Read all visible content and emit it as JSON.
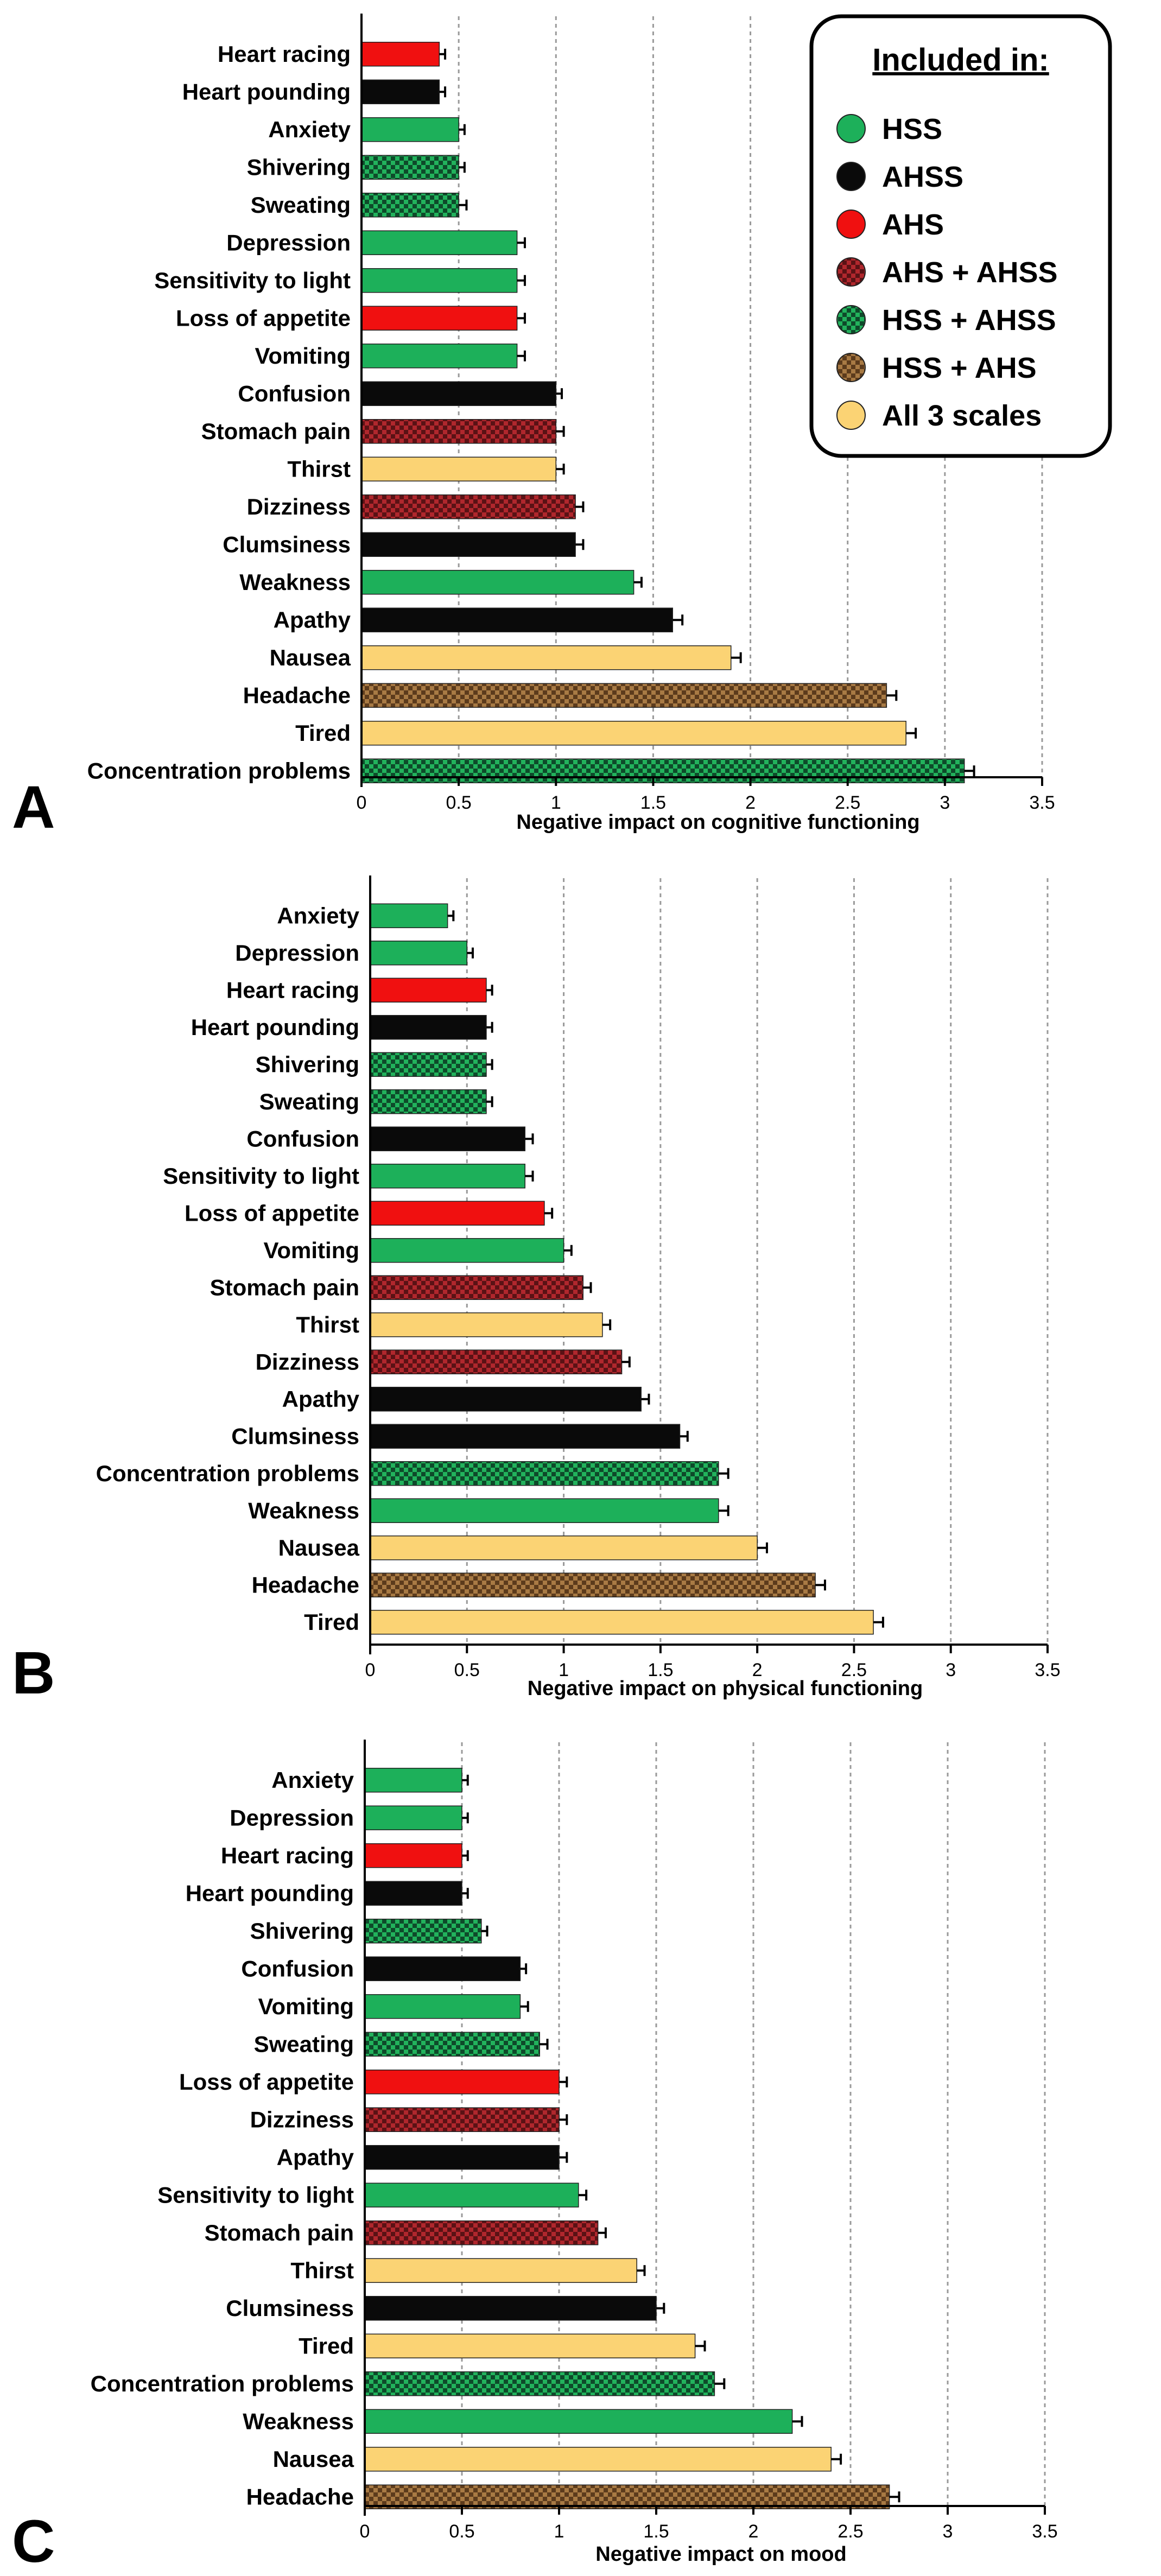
{
  "legend": {
    "title": "Included in:",
    "entries": [
      {
        "key": "HSS",
        "label": "HSS"
      },
      {
        "key": "AHSS",
        "label": "AHSS"
      },
      {
        "key": "AHS",
        "label": "AHS"
      },
      {
        "key": "AHS_AHSS",
        "label": "AHS + AHSS"
      },
      {
        "key": "HSS_AHSS",
        "label": "HSS + AHSS"
      },
      {
        "key": "HSS_AHS",
        "label": "HSS + AHS"
      },
      {
        "key": "ALL3",
        "label": "All 3 scales"
      }
    ]
  },
  "colors": {
    "HSS": "#1db05a",
    "AHSS": "#0a0a0a",
    "AHS": "#f01010",
    "AHS_AHSS": "#b0272d",
    "HSS_AHSS": "#1f9f55",
    "HSS_AHS": "#a0703a",
    "ALL3": "#fbd374"
  },
  "chart_data": [
    {
      "type": "bar",
      "panel": "A",
      "xlabel": "Negative impact on cognitive functioning",
      "xlim": [
        0,
        3.5
      ],
      "xticks": [
        "0",
        "0.5",
        "1",
        "1.5",
        "2",
        "2.5",
        "3",
        "3.5"
      ],
      "categories": [
        "Heart racing",
        "Heart pounding",
        "Anxiety",
        "Shivering",
        "Sweating",
        "Depression",
        "Sensitivity to light",
        "Loss of appetite",
        "Vomiting",
        "Confusion",
        "Stomach pain",
        "Thirst",
        "Dizziness",
        "Clumsiness",
        "Weakness",
        "Apathy",
        "Nausea",
        "Headache",
        "Tired",
        "Concentration problems"
      ],
      "values": [
        0.4,
        0.4,
        0.5,
        0.5,
        0.5,
        0.8,
        0.8,
        0.8,
        0.8,
        1.0,
        1.0,
        1.0,
        1.1,
        1.1,
        1.4,
        1.6,
        1.9,
        2.7,
        2.8,
        3.1
      ],
      "errors": [
        0.03,
        0.03,
        0.03,
        0.03,
        0.04,
        0.04,
        0.04,
        0.04,
        0.04,
        0.03,
        0.04,
        0.04,
        0.04,
        0.04,
        0.04,
        0.05,
        0.05,
        0.05,
        0.05,
        0.05
      ],
      "groups": [
        "AHS",
        "AHSS",
        "HSS",
        "HSS_AHSS",
        "HSS_AHSS",
        "HSS",
        "HSS",
        "AHS",
        "HSS",
        "AHSS",
        "AHS_AHSS",
        "ALL3",
        "AHS_AHSS",
        "AHSS",
        "HSS",
        "AHSS",
        "ALL3",
        "HSS_AHS",
        "ALL3",
        "HSS_AHSS"
      ]
    },
    {
      "type": "bar",
      "panel": "B",
      "xlabel": "Negative impact on physical functioning",
      "xlim": [
        0,
        3.5
      ],
      "xticks": [
        "0",
        "0.5",
        "1",
        "1.5",
        "2",
        "2.5",
        "3",
        "3.5"
      ],
      "categories": [
        "Anxiety",
        "Depression",
        "Heart racing",
        "Heart pounding",
        "Shivering",
        "Sweating",
        "Confusion",
        "Sensitivity to light",
        "Loss of appetite",
        "Vomiting",
        "Stomach pain",
        "Thirst",
        "Dizziness",
        "Apathy",
        "Clumsiness",
        "Concentration problems",
        "Weakness",
        "Nausea",
        "Headache",
        "Tired"
      ],
      "values": [
        0.4,
        0.5,
        0.6,
        0.6,
        0.6,
        0.6,
        0.8,
        0.8,
        0.9,
        1.0,
        1.1,
        1.2,
        1.3,
        1.4,
        1.6,
        1.8,
        1.8,
        2.0,
        2.3,
        2.6
      ],
      "errors": [
        0.03,
        0.03,
        0.03,
        0.03,
        0.03,
        0.03,
        0.04,
        0.04,
        0.04,
        0.04,
        0.04,
        0.04,
        0.04,
        0.04,
        0.04,
        0.05,
        0.05,
        0.05,
        0.05,
        0.05
      ],
      "groups": [
        "HSS",
        "HSS",
        "AHS",
        "AHSS",
        "HSS_AHSS",
        "HSS_AHSS",
        "AHSS",
        "HSS",
        "AHS",
        "HSS",
        "AHS_AHSS",
        "ALL3",
        "AHS_AHSS",
        "AHSS",
        "AHSS",
        "HSS_AHSS",
        "HSS",
        "ALL3",
        "HSS_AHS",
        "ALL3"
      ]
    },
    {
      "type": "bar",
      "panel": "C",
      "xlabel": "Negative impact on mood",
      "xlim": [
        0,
        3.5
      ],
      "xticks": [
        "0",
        "0.5",
        "1",
        "1.5",
        "2",
        "2.5",
        "3",
        "3.5"
      ],
      "categories": [
        "Anxiety",
        "Depression",
        "Heart racing",
        "Heart pounding",
        "Shivering",
        "Confusion",
        "Vomiting",
        "Sweating",
        "Loss of appetite",
        "Dizziness",
        "Apathy",
        "Sensitivity to light",
        "Stomach pain",
        "Thirst",
        "Clumsiness",
        "Tired",
        "Concentration problems",
        "Weakness",
        "Nausea",
        "Headache"
      ],
      "values": [
        0.5,
        0.5,
        0.5,
        0.5,
        0.6,
        0.8,
        0.8,
        0.9,
        1.0,
        1.0,
        1.0,
        1.1,
        1.2,
        1.4,
        1.5,
        1.7,
        1.8,
        2.2,
        2.4,
        2.7
      ],
      "errors": [
        0.03,
        0.03,
        0.03,
        0.03,
        0.03,
        0.03,
        0.04,
        0.04,
        0.04,
        0.04,
        0.04,
        0.04,
        0.04,
        0.04,
        0.04,
        0.05,
        0.05,
        0.05,
        0.05,
        0.05
      ],
      "groups": [
        "HSS",
        "HSS",
        "AHS",
        "AHSS",
        "HSS_AHSS",
        "AHSS",
        "HSS",
        "HSS_AHSS",
        "AHS",
        "AHS_AHSS",
        "AHSS",
        "HSS",
        "AHS_AHSS",
        "ALL3",
        "AHSS",
        "ALL3",
        "HSS_AHSS",
        "HSS",
        "ALL3",
        "HSS_AHS"
      ]
    }
  ]
}
